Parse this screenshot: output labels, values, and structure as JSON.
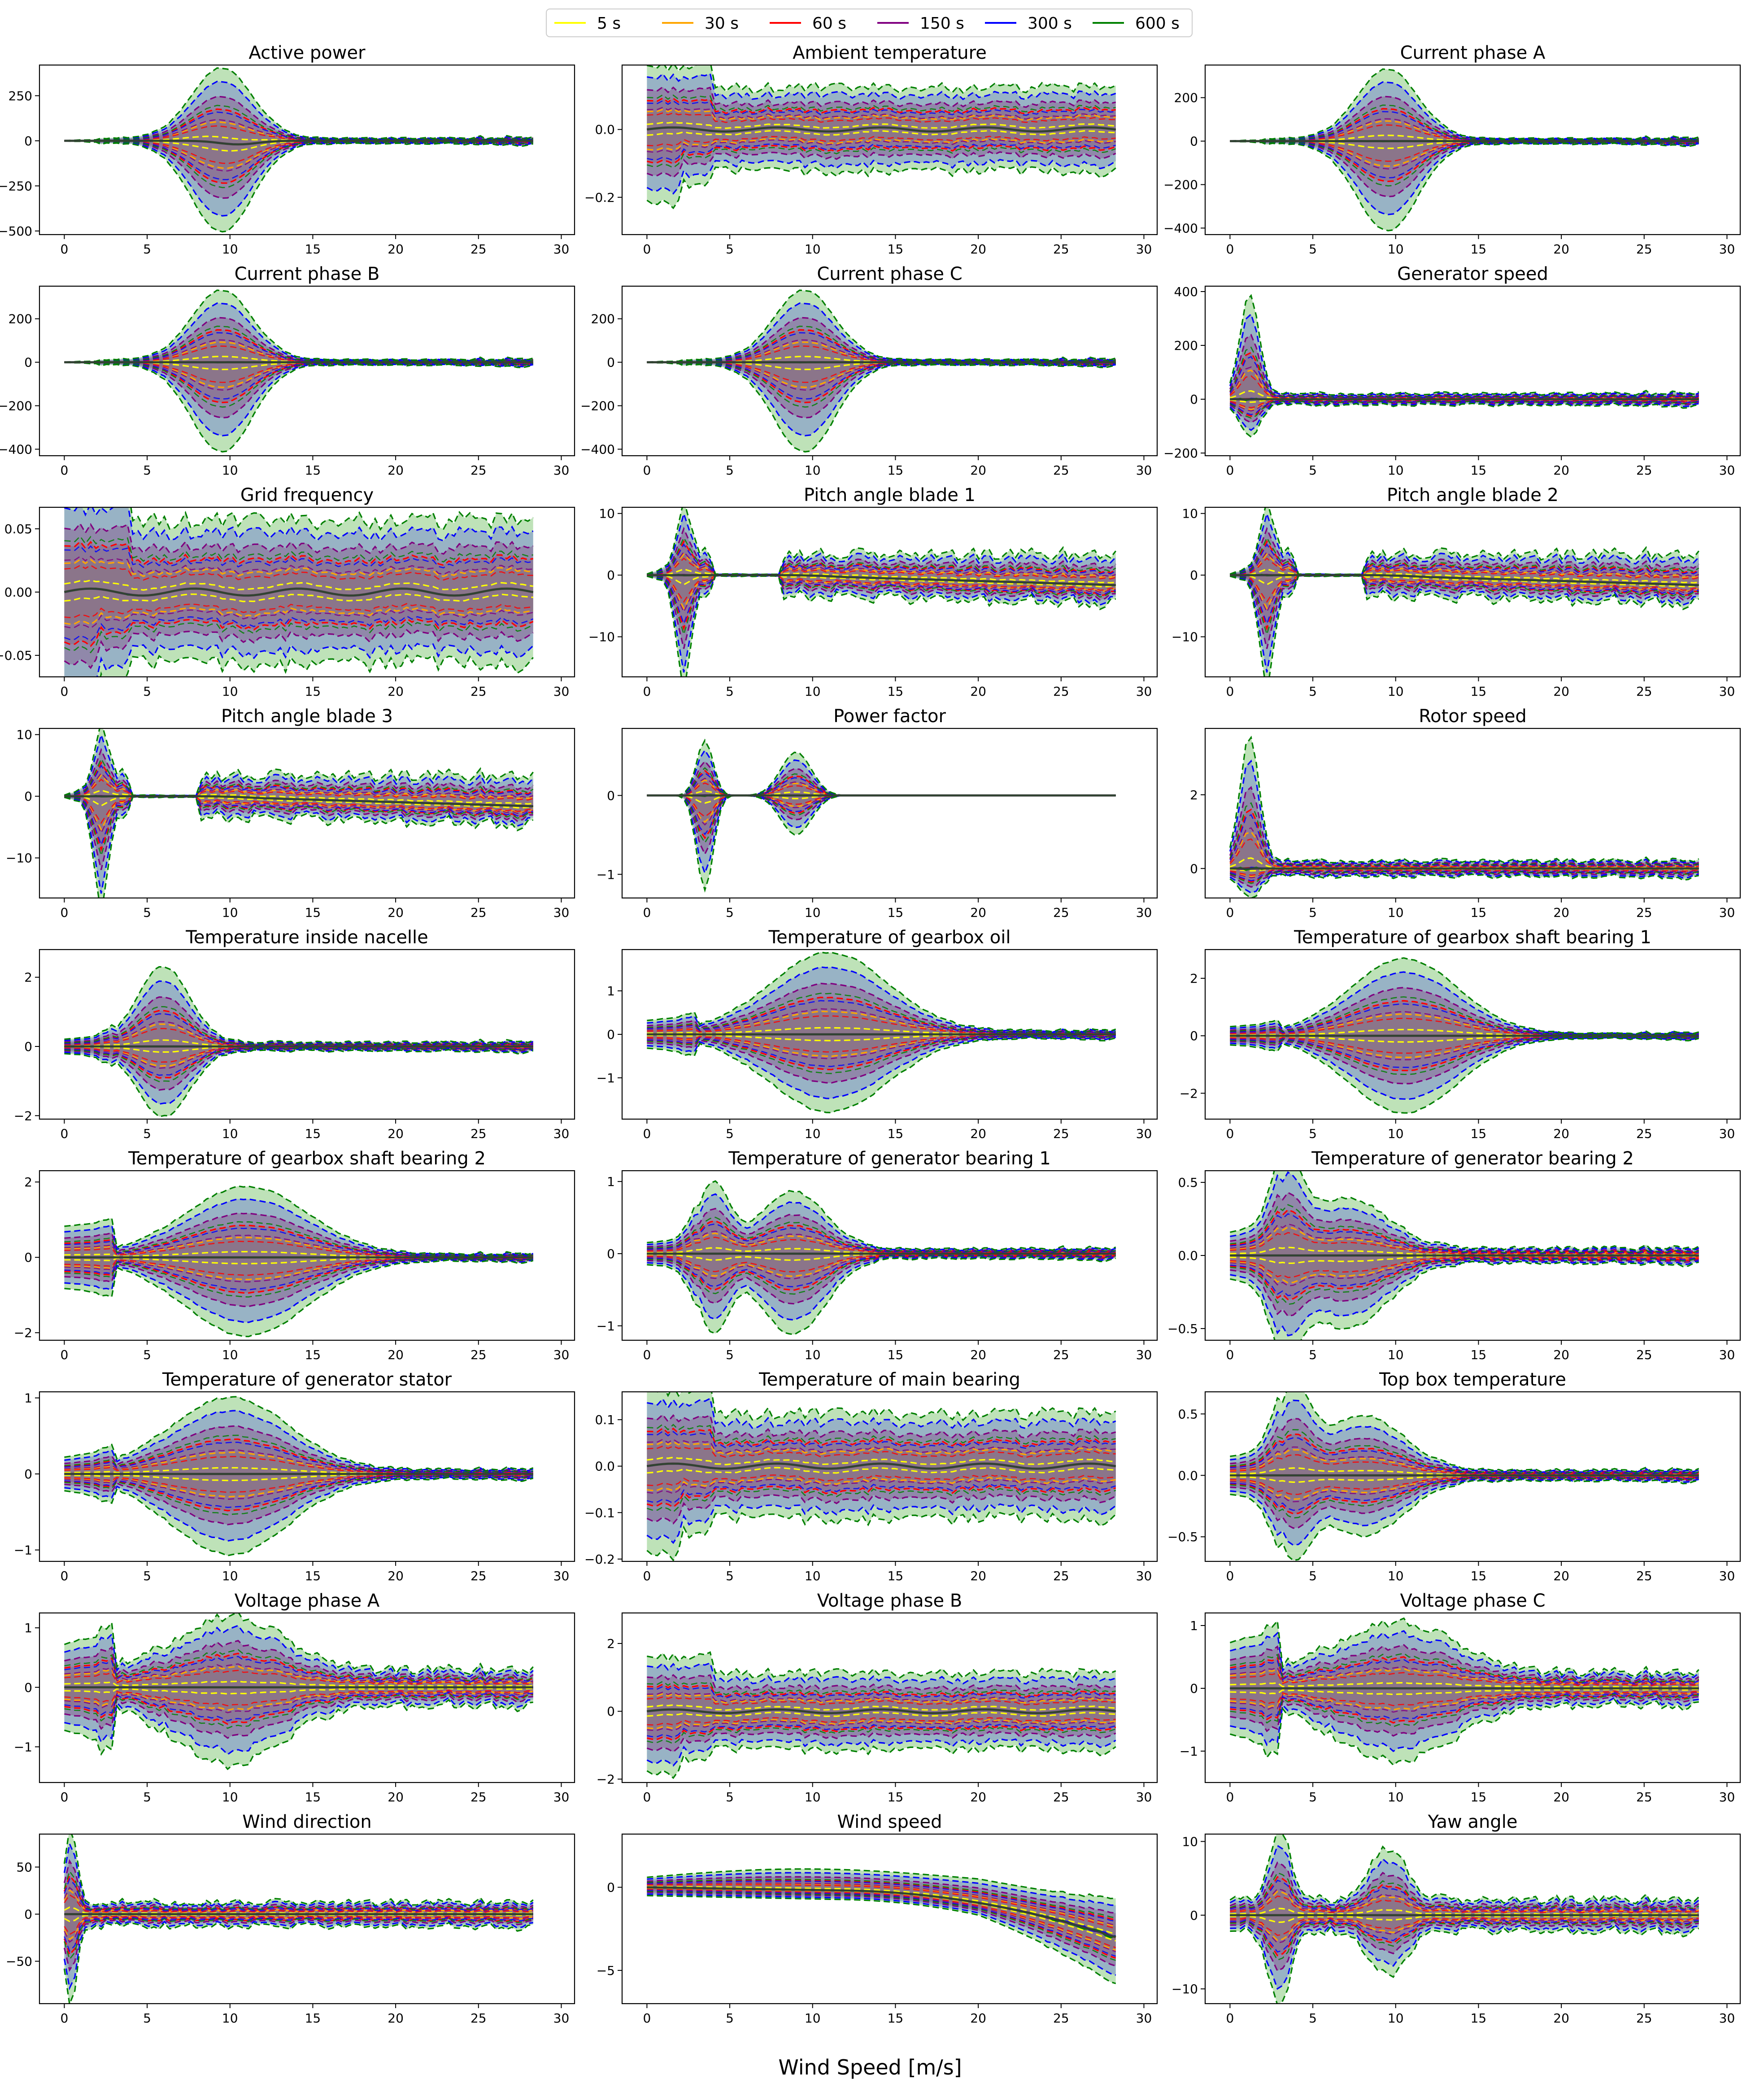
{
  "xlabel": "Wind Speed [m/s]",
  "legend": {
    "position": "top-center",
    "entries": [
      {
        "label": "5 s",
        "color": "#ffff00"
      },
      {
        "label": "30 s",
        "color": "#ffa500"
      },
      {
        "label": "60 s",
        "color": "#ff0000"
      },
      {
        "label": "150 s",
        "color": "#800080"
      },
      {
        "label": "300 s",
        "color": "#0000ff"
      },
      {
        "label": "600 s",
        "color": "#008000"
      }
    ]
  },
  "chart_data": [
    {
      "type": "area",
      "title": "Active power",
      "ylim": [
        -520,
        420
      ],
      "yticks": [
        -500,
        -250,
        0,
        250
      ],
      "xticks": [
        0,
        5,
        10,
        15,
        20,
        25,
        30
      ],
      "xlim": [
        -1.5,
        30.8
      ],
      "shape": "bump",
      "bumps": [
        {
          "c": 9.5,
          "w": 2.6,
          "a": 390,
          "b": -490
        }
      ],
      "base": 18,
      "early": 0
    },
    {
      "type": "area",
      "title": "Ambient temperature",
      "ylim": [
        -0.31,
        0.19
      ],
      "yticks": [
        -0.2,
        0.0
      ],
      "xticks": [
        0,
        5,
        10,
        15,
        20,
        25,
        30
      ],
      "xlim": [
        -1.5,
        30.8
      ],
      "shape": "flat",
      "bumps": [],
      "base": 0.12,
      "early": 0.16
    },
    {
      "type": "area",
      "title": "Current phase A",
      "ylim": [
        -430,
        350
      ],
      "yticks": [
        -400,
        -200,
        0,
        200
      ],
      "xticks": [
        0,
        5,
        10,
        15,
        20,
        25,
        30
      ],
      "xlim": [
        -1.5,
        30.8
      ],
      "shape": "bump",
      "bumps": [
        {
          "c": 9.5,
          "w": 2.6,
          "a": 320,
          "b": -400
        }
      ],
      "base": 15,
      "early": 0
    },
    {
      "type": "area",
      "title": "Current phase B",
      "ylim": [
        -430,
        350
      ],
      "yticks": [
        -400,
        -200,
        0,
        200
      ],
      "xticks": [
        0,
        5,
        10,
        15,
        20,
        25,
        30
      ],
      "xlim": [
        -1.5,
        30.8
      ],
      "shape": "bump",
      "bumps": [
        {
          "c": 9.5,
          "w": 2.6,
          "a": 320,
          "b": -400
        }
      ],
      "base": 15,
      "early": 0
    },
    {
      "type": "area",
      "title": "Current phase C",
      "ylim": [
        -430,
        350
      ],
      "yticks": [
        -400,
        -200,
        0,
        200
      ],
      "xticks": [
        0,
        5,
        10,
        15,
        20,
        25,
        30
      ],
      "xlim": [
        -1.5,
        30.8
      ],
      "shape": "bump",
      "bumps": [
        {
          "c": 9.5,
          "w": 2.6,
          "a": 320,
          "b": -400
        }
      ],
      "base": 15,
      "early": 0
    },
    {
      "type": "area",
      "title": "Generator speed",
      "ylim": [
        -210,
        420
      ],
      "yticks": [
        -200,
        0,
        200,
        400
      ],
      "xticks": [
        0,
        5,
        10,
        15,
        20,
        25,
        30
      ],
      "xlim": [
        -1.5,
        30.8
      ],
      "shape": "early",
      "bumps": [
        {
          "c": 1.2,
          "w": 0.8,
          "a": 370,
          "b": -120
        }
      ],
      "base": 25,
      "early": 0
    },
    {
      "type": "area",
      "title": "Grid frequency",
      "ylim": [
        -0.067,
        0.067
      ],
      "yticks": [
        -0.05,
        0.0,
        0.05
      ],
      "xticks": [
        0,
        5,
        10,
        15,
        20,
        25,
        30
      ],
      "xlim": [
        -1.5,
        30.8
      ],
      "shape": "flat",
      "bumps": [],
      "base": 0.055,
      "early": 0.06
    },
    {
      "type": "area",
      "title": "Pitch angle blade 1",
      "ylim": [
        -16.5,
        11
      ],
      "yticks": [
        -10,
        0,
        10
      ],
      "xticks": [
        0,
        5,
        10,
        15,
        20,
        25,
        30
      ],
      "xlim": [
        -1.5,
        30.8
      ],
      "shape": "pitch",
      "bumps": [
        {
          "c": 2.2,
          "w": 0.6,
          "a": 9,
          "b": -15
        }
      ],
      "base": 4,
      "early": 0
    },
    {
      "type": "area",
      "title": "Pitch angle blade 2",
      "ylim": [
        -16.5,
        11
      ],
      "yticks": [
        -10,
        0,
        10
      ],
      "xticks": [
        0,
        5,
        10,
        15,
        20,
        25,
        30
      ],
      "xlim": [
        -1.5,
        30.8
      ],
      "shape": "pitch",
      "bumps": [
        {
          "c": 2.2,
          "w": 0.6,
          "a": 9,
          "b": -15
        }
      ],
      "base": 4,
      "early": 0
    },
    {
      "type": "area",
      "title": "Pitch angle blade 3",
      "ylim": [
        -16.5,
        11
      ],
      "yticks": [
        -10,
        0,
        10
      ],
      "xticks": [
        0,
        5,
        10,
        15,
        20,
        25,
        30
      ],
      "xlim": [
        -1.5,
        30.8
      ],
      "shape": "pitch",
      "bumps": [
        {
          "c": 2.2,
          "w": 0.6,
          "a": 9,
          "b": -15
        }
      ],
      "base": 4,
      "early": 0
    },
    {
      "type": "area",
      "title": "Power factor",
      "ylim": [
        -1.3,
        0.85
      ],
      "yticks": [
        -1,
        0
      ],
      "xticks": [
        0,
        5,
        10,
        15,
        20,
        25,
        30
      ],
      "xlim": [
        -1.5,
        30.8
      ],
      "shape": "pf",
      "bumps": [
        {
          "c": 3.5,
          "w": 0.7,
          "a": 0.7,
          "b": -1.2
        },
        {
          "c": 9.0,
          "w": 1.3,
          "a": 0.55,
          "b": -0.5
        }
      ],
      "base": 0,
      "early": 0
    },
    {
      "type": "area",
      "title": "Rotor speed",
      "ylim": [
        -0.8,
        3.8
      ],
      "yticks": [
        0,
        2
      ],
      "xticks": [
        0,
        5,
        10,
        15,
        20,
        25,
        30
      ],
      "xlim": [
        -1.5,
        30.8
      ],
      "shape": "early",
      "bumps": [
        {
          "c": 1.2,
          "w": 0.8,
          "a": 3.4,
          "b": -0.6
        }
      ],
      "base": 0.25,
      "early": 0
    },
    {
      "type": "area",
      "title": "Temperature inside nacelle",
      "ylim": [
        -2.1,
        2.8
      ],
      "yticks": [
        -2,
        0,
        2
      ],
      "xticks": [
        0,
        5,
        10,
        15,
        20,
        25,
        30
      ],
      "xlim": [
        -1.5,
        30.8
      ],
      "shape": "bump",
      "bumps": [
        {
          "c": 6.0,
          "w": 2.2,
          "a": 2.2,
          "b": -1.9
        }
      ],
      "base": 0.15,
      "early": 0.2
    },
    {
      "type": "area",
      "title": "Temperature of gearbox oil",
      "ylim": [
        -1.95,
        1.95
      ],
      "yticks": [
        -1,
        0,
        1
      ],
      "xticks": [
        0,
        5,
        10,
        15,
        20,
        25,
        30
      ],
      "xlim": [
        -1.5,
        30.8
      ],
      "shape": "bump",
      "bumps": [
        {
          "c": 11.0,
          "w": 5.0,
          "a": 1.8,
          "b": -1.7
        }
      ],
      "base": 0.1,
      "early": 0.3
    },
    {
      "type": "area",
      "title": "Temperature of gearbox shaft bearing 1",
      "ylim": [
        -2.9,
        3.0
      ],
      "yticks": [
        -2,
        0,
        2
      ],
      "xticks": [
        0,
        5,
        10,
        15,
        20,
        25,
        30
      ],
      "xlim": [
        -1.5,
        30.8
      ],
      "shape": "bump",
      "bumps": [
        {
          "c": 10.5,
          "w": 4.6,
          "a": 2.6,
          "b": -2.6
        }
      ],
      "base": 0.1,
      "early": 0.3
    },
    {
      "type": "area",
      "title": "Temperature of gearbox shaft bearing 2",
      "ylim": [
        -2.2,
        2.3
      ],
      "yticks": [
        -2,
        0,
        2
      ],
      "xticks": [
        0,
        5,
        10,
        15,
        20,
        25,
        30
      ],
      "xlim": [
        -1.5,
        30.8
      ],
      "shape": "bump",
      "bumps": [
        {
          "c": 11.0,
          "w": 5.2,
          "a": 1.8,
          "b": -2.0
        }
      ],
      "base": 0.1,
      "early": 0.8
    },
    {
      "type": "area",
      "title": "Temperature of generator bearing 1",
      "ylim": [
        -1.2,
        1.15
      ],
      "yticks": [
        -1,
        0,
        1
      ],
      "xticks": [
        0,
        5,
        10,
        15,
        20,
        25,
        30
      ],
      "xlim": [
        -1.5,
        30.8
      ],
      "shape": "bump",
      "bumps": [
        {
          "c": 4.0,
          "w": 1.3,
          "a": 0.9,
          "b": -1.0
        },
        {
          "c": 8.8,
          "w": 2.8,
          "a": 0.8,
          "b": -1.05
        }
      ],
      "base": 0.08,
      "early": 0.15
    },
    {
      "type": "area",
      "title": "Temperature of generator bearing 2",
      "ylim": [
        -0.58,
        0.58
      ],
      "yticks": [
        -0.5,
        0.0,
        0.5
      ],
      "xticks": [
        0,
        5,
        10,
        15,
        20,
        25,
        30
      ],
      "xlim": [
        -1.5,
        30.8
      ],
      "shape": "bump",
      "bumps": [
        {
          "c": 3.5,
          "w": 1.2,
          "a": 0.5,
          "b": -0.45
        },
        {
          "c": 7.0,
          "w": 3.5,
          "a": 0.35,
          "b": -0.45
        }
      ],
      "base": 0.06,
      "early": 0.15
    },
    {
      "type": "area",
      "title": "Temperature of generator stator",
      "ylim": [
        -1.15,
        1.08
      ],
      "yticks": [
        -1,
        0,
        1
      ],
      "xticks": [
        0,
        5,
        10,
        15,
        20,
        25,
        30
      ],
      "xlim": [
        -1.5,
        30.8
      ],
      "shape": "bump",
      "bumps": [
        {
          "c": 10.0,
          "w": 5.0,
          "a": 0.95,
          "b": -1.0
        }
      ],
      "base": 0.07,
      "early": 0.2
    },
    {
      "type": "area",
      "title": "Temperature of main bearing",
      "ylim": [
        -0.205,
        0.16
      ],
      "yticks": [
        -0.2,
        -0.1,
        0.0,
        0.1
      ],
      "xticks": [
        0,
        5,
        10,
        15,
        20,
        25,
        30
      ],
      "xlim": [
        -1.5,
        30.8
      ],
      "shape": "flat",
      "bumps": [],
      "base": 0.11,
      "early": 0.13
    },
    {
      "type": "area",
      "title": "Top box temperature",
      "ylim": [
        -0.7,
        0.68
      ],
      "yticks": [
        -0.5,
        0.0,
        0.5
      ],
      "xticks": [
        0,
        5,
        10,
        15,
        20,
        25,
        30
      ],
      "xlim": [
        -1.5,
        30.8
      ],
      "shape": "bump",
      "bumps": [
        {
          "c": 3.8,
          "w": 1.4,
          "a": 0.6,
          "b": -0.55
        },
        {
          "c": 8.0,
          "w": 3.5,
          "a": 0.45,
          "b": -0.45
        }
      ],
      "base": 0.05,
      "early": 0.15
    },
    {
      "type": "area",
      "title": "Voltage phase A",
      "ylim": [
        -1.6,
        1.25
      ],
      "yticks": [
        -1,
        0,
        1
      ],
      "xticks": [
        0,
        5,
        10,
        15,
        20,
        25,
        30
      ],
      "xlim": [
        -1.5,
        30.8
      ],
      "shape": "bump",
      "bumps": [
        {
          "c": 10.0,
          "w": 4.5,
          "a": 0.9,
          "b": -1.0
        }
      ],
      "base": 0.35,
      "early": 0.7
    },
    {
      "type": "area",
      "title": "Voltage phase B",
      "ylim": [
        -2.1,
        2.9
      ],
      "yticks": [
        -2,
        0,
        2
      ],
      "xticks": [
        0,
        5,
        10,
        15,
        20,
        25,
        30
      ],
      "xlim": [
        -1.5,
        30.8
      ],
      "shape": "flat",
      "bumps": [],
      "base": 1.1,
      "early": 1.2
    },
    {
      "type": "area",
      "title": "Voltage phase C",
      "ylim": [
        -1.5,
        1.2
      ],
      "yticks": [
        -1,
        0,
        1
      ],
      "xticks": [
        0,
        5,
        10,
        15,
        20,
        25,
        30
      ],
      "xlim": [
        -1.5,
        30.8
      ],
      "shape": "bump",
      "bumps": [
        {
          "c": 10.0,
          "w": 5.0,
          "a": 0.8,
          "b": -0.9
        }
      ],
      "base": 0.3,
      "early": 0.7
    },
    {
      "type": "area",
      "title": "Wind direction",
      "ylim": [
        -95,
        85
      ],
      "yticks": [
        -50,
        0,
        50
      ],
      "xticks": [
        0,
        5,
        10,
        15,
        20,
        25,
        30
      ],
      "xlim": [
        -1.5,
        30.8
      ],
      "shape": "early",
      "bumps": [
        {
          "c": 0.4,
          "w": 0.5,
          "a": 78,
          "b": -85
        }
      ],
      "base": 15,
      "early": 0
    },
    {
      "type": "area",
      "title": "Wind speed",
      "ylim": [
        -7.0,
        3.2
      ],
      "yticks": [
        -5,
        0
      ],
      "xticks": [
        0,
        5,
        10,
        15,
        20,
        25,
        30
      ],
      "xlim": [
        -1.5,
        30.8
      ],
      "shape": "windspeed",
      "bumps": [],
      "base": 2.0,
      "early": 0
    },
    {
      "type": "area",
      "title": "Yaw angle",
      "ylim": [
        -12,
        11
      ],
      "yticks": [
        -10,
        0,
        10
      ],
      "xticks": [
        0,
        5,
        10,
        15,
        20,
        25,
        30
      ],
      "xlim": [
        -1.5,
        30.8
      ],
      "shape": "yaw",
      "bumps": [
        {
          "c": 3.0,
          "w": 0.9,
          "a": 9.5,
          "b": -10.5
        },
        {
          "c": 9.5,
          "w": 1.6,
          "a": 7,
          "b": -6
        }
      ],
      "base": 2.5,
      "early": 0
    }
  ]
}
